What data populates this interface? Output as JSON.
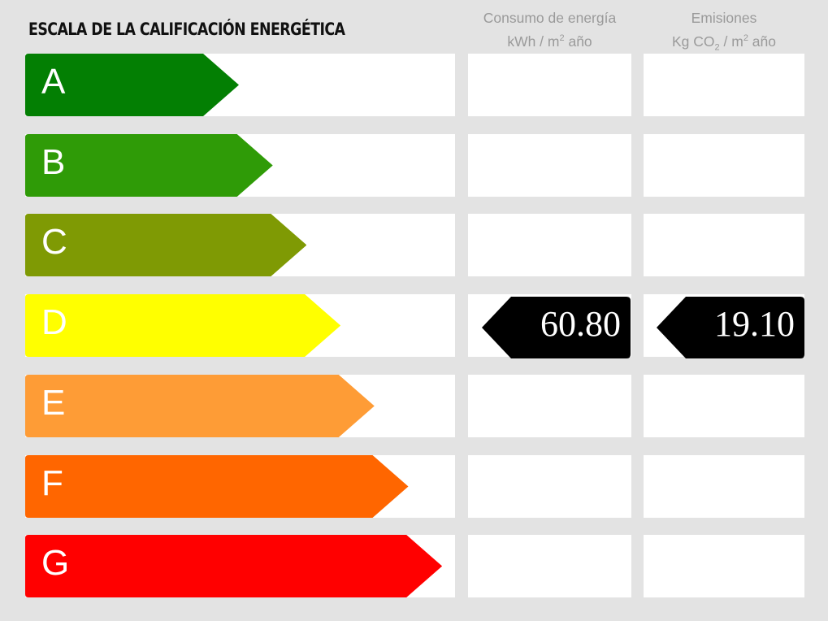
{
  "title": "ESCALA DE LA CALIFICACIÓN ENERGÉTICA",
  "columns": {
    "energy": {
      "line1": "Consumo de energía",
      "unit_pre": "kWh / m",
      "unit_sup": "2",
      "unit_post": " año"
    },
    "emissions": {
      "line1": "Emisiones",
      "unit_pre": "Kg CO",
      "unit_sub": "2",
      "unit_mid": " / m",
      "unit_sup": "2",
      "unit_post": " año"
    }
  },
  "ratings": [
    {
      "letter": "A",
      "color": "#037f03"
    },
    {
      "letter": "B",
      "color": "#2f9b07"
    },
    {
      "letter": "C",
      "color": "#7f9a04"
    },
    {
      "letter": "D",
      "color": "#ffff00"
    },
    {
      "letter": "E",
      "color": "#fe9c36"
    },
    {
      "letter": "F",
      "color": "#ff6600"
    },
    {
      "letter": "G",
      "color": "#ff0000"
    }
  ],
  "current_rating": "D",
  "energy_value": "60.80",
  "emissions_value": "19.10"
}
